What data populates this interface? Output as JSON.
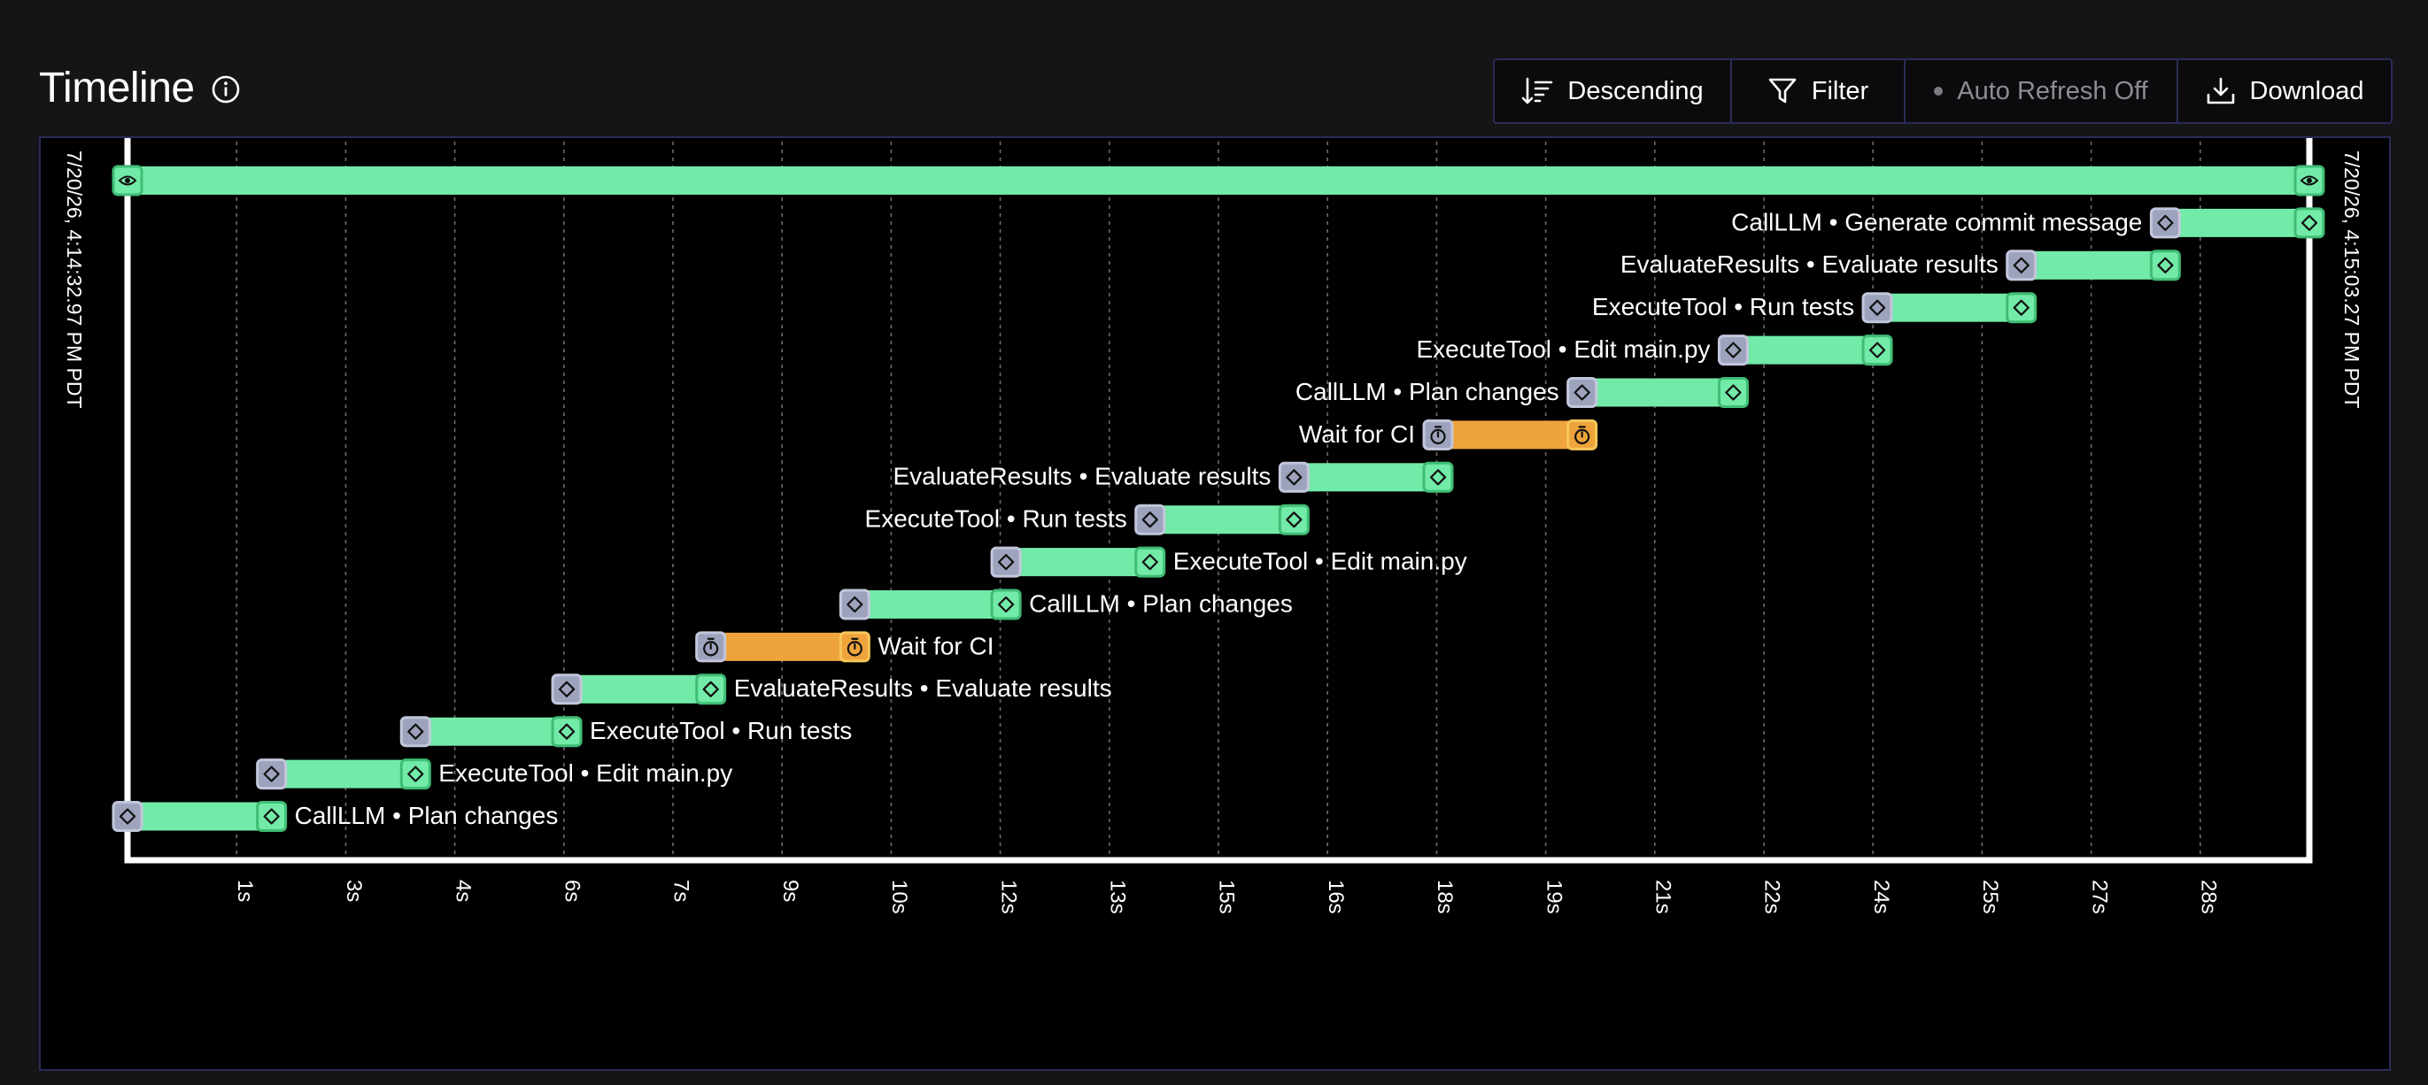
{
  "header": {
    "title": "Timeline",
    "info_icon": "info-icon"
  },
  "toolbar": {
    "sort": {
      "label": "Descending",
      "icon": "sort-descending-icon"
    },
    "filter": {
      "label": "Filter",
      "icon": "filter-icon"
    },
    "refresh": {
      "label": "Auto Refresh Off",
      "state": "off"
    },
    "download": {
      "label": "Download",
      "icon": "download-icon"
    }
  },
  "colors": {
    "span": "#72eaa8",
    "span_border": "#3fbd74",
    "wait": "#eea43a",
    "wait_border": "#f6c65a",
    "start_marker": "#9da2bd",
    "axis": "#ffffff"
  },
  "chart_data": {
    "type": "gantt",
    "start_label": "7/20/26, 4:14:32.97 PM PDT",
    "end_label": "7/20/26, 4:15:03.27 PM PDT",
    "x_unit": "s",
    "x_range": [
      0,
      30.3
    ],
    "tick_labels": [
      "1s",
      "3s",
      "4s",
      "6s",
      "7s",
      "9s",
      "10s",
      "12s",
      "13s",
      "15s",
      "16s",
      "18s",
      "19s",
      "21s",
      "22s",
      "24s",
      "25s",
      "27s",
      "28s"
    ],
    "rows": [
      {
        "label": "",
        "start": 0,
        "end": 30.3,
        "kind": "root",
        "label_side": "none"
      },
      {
        "label": "CallLLM • Generate commit message",
        "start": 28.3,
        "end": 30.3,
        "kind": "span",
        "label_side": "left"
      },
      {
        "label": "EvaluateResults • Evaluate results",
        "start": 26.3,
        "end": 28.3,
        "kind": "span",
        "label_side": "left"
      },
      {
        "label": "ExecuteTool • Run tests",
        "start": 24.3,
        "end": 26.3,
        "kind": "span",
        "label_side": "left"
      },
      {
        "label": "ExecuteTool • Edit main.py",
        "start": 22.3,
        "end": 24.3,
        "kind": "span",
        "label_side": "left"
      },
      {
        "label": "CallLLM • Plan changes",
        "start": 20.2,
        "end": 22.3,
        "kind": "span",
        "label_side": "left"
      },
      {
        "label": "Wait for CI",
        "start": 18.2,
        "end": 20.2,
        "kind": "wait",
        "label_side": "left"
      },
      {
        "label": "EvaluateResults • Evaluate results",
        "start": 16.2,
        "end": 18.2,
        "kind": "span",
        "label_side": "left"
      },
      {
        "label": "ExecuteTool • Run tests",
        "start": 14.2,
        "end": 16.2,
        "kind": "span",
        "label_side": "left"
      },
      {
        "label": "ExecuteTool • Edit main.py",
        "start": 12.2,
        "end": 14.2,
        "kind": "span",
        "label_side": "right"
      },
      {
        "label": "CallLLM • Plan changes",
        "start": 10.1,
        "end": 12.2,
        "kind": "span",
        "label_side": "right"
      },
      {
        "label": "Wait for CI",
        "start": 8.1,
        "end": 10.1,
        "kind": "wait",
        "label_side": "right"
      },
      {
        "label": "EvaluateResults • Evaluate results",
        "start": 6.1,
        "end": 8.1,
        "kind": "span",
        "label_side": "right"
      },
      {
        "label": "ExecuteTool • Run tests",
        "start": 4.0,
        "end": 6.1,
        "kind": "span",
        "label_side": "right"
      },
      {
        "label": "ExecuteTool • Edit main.py",
        "start": 2.0,
        "end": 4.0,
        "kind": "span",
        "label_side": "right"
      },
      {
        "label": "CallLLM • Plan changes",
        "start": 0,
        "end": 2.0,
        "kind": "span",
        "label_side": "right"
      }
    ]
  }
}
